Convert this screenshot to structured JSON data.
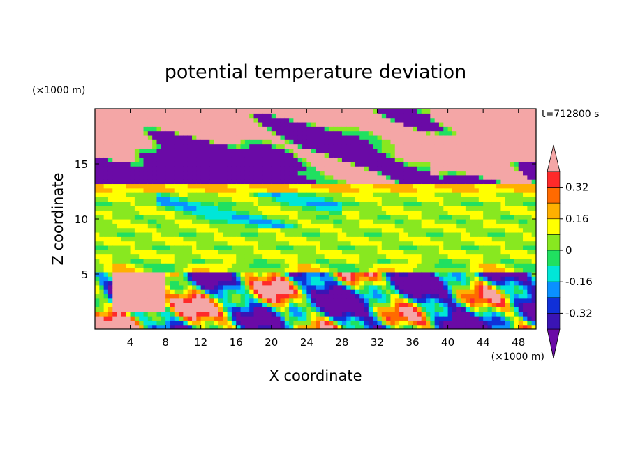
{
  "chart_data": {
    "type": "heatmap",
    "title": "potential temperature deviation",
    "xlabel": "X coordinate",
    "ylabel": "Z coordinate",
    "x_units": "(×1000 m)",
    "y_units": "(×1000 m)",
    "time_label": "t=712800 s",
    "x_ticks": [
      "4",
      "8",
      "12",
      "16",
      "20",
      "24",
      "28",
      "32",
      "36",
      "40",
      "44",
      "48"
    ],
    "y_ticks": [
      "5",
      "10",
      "15"
    ],
    "xlim": [
      0,
      50
    ],
    "ylim": [
      0,
      20
    ],
    "colorbar": {
      "labels": [
        "0.32",
        "0.16",
        "0",
        "-0.16",
        "-0.32"
      ],
      "label_values": [
        0.32,
        0.16,
        0,
        -0.16,
        -0.32
      ],
      "levels": [
        -0.4,
        -0.32,
        -0.24,
        -0.16,
        -0.08,
        0,
        0.08,
        0.16,
        0.24,
        0.32,
        0.4
      ],
      "colors": [
        "#6a0aa6",
        "#3a14b4",
        "#1030d8",
        "#0a90ff",
        "#00e6d8",
        "#20e060",
        "#88e820",
        "#ffff00",
        "#ffb000",
        "#ff6a00",
        "#ff2a2a",
        "#f4a6a6"
      ]
    },
    "regions": [
      {
        "band": [
          0,
          5
        ],
        "pattern": "mixed strongly positive and strongly negative plumes"
      },
      {
        "band": [
          5,
          13
        ],
        "pattern": "near zero, slightly positive layers"
      },
      {
        "band": [
          13,
          20
        ],
        "pattern": "alternating strongly positive and strongly negative patches"
      }
    ]
  }
}
